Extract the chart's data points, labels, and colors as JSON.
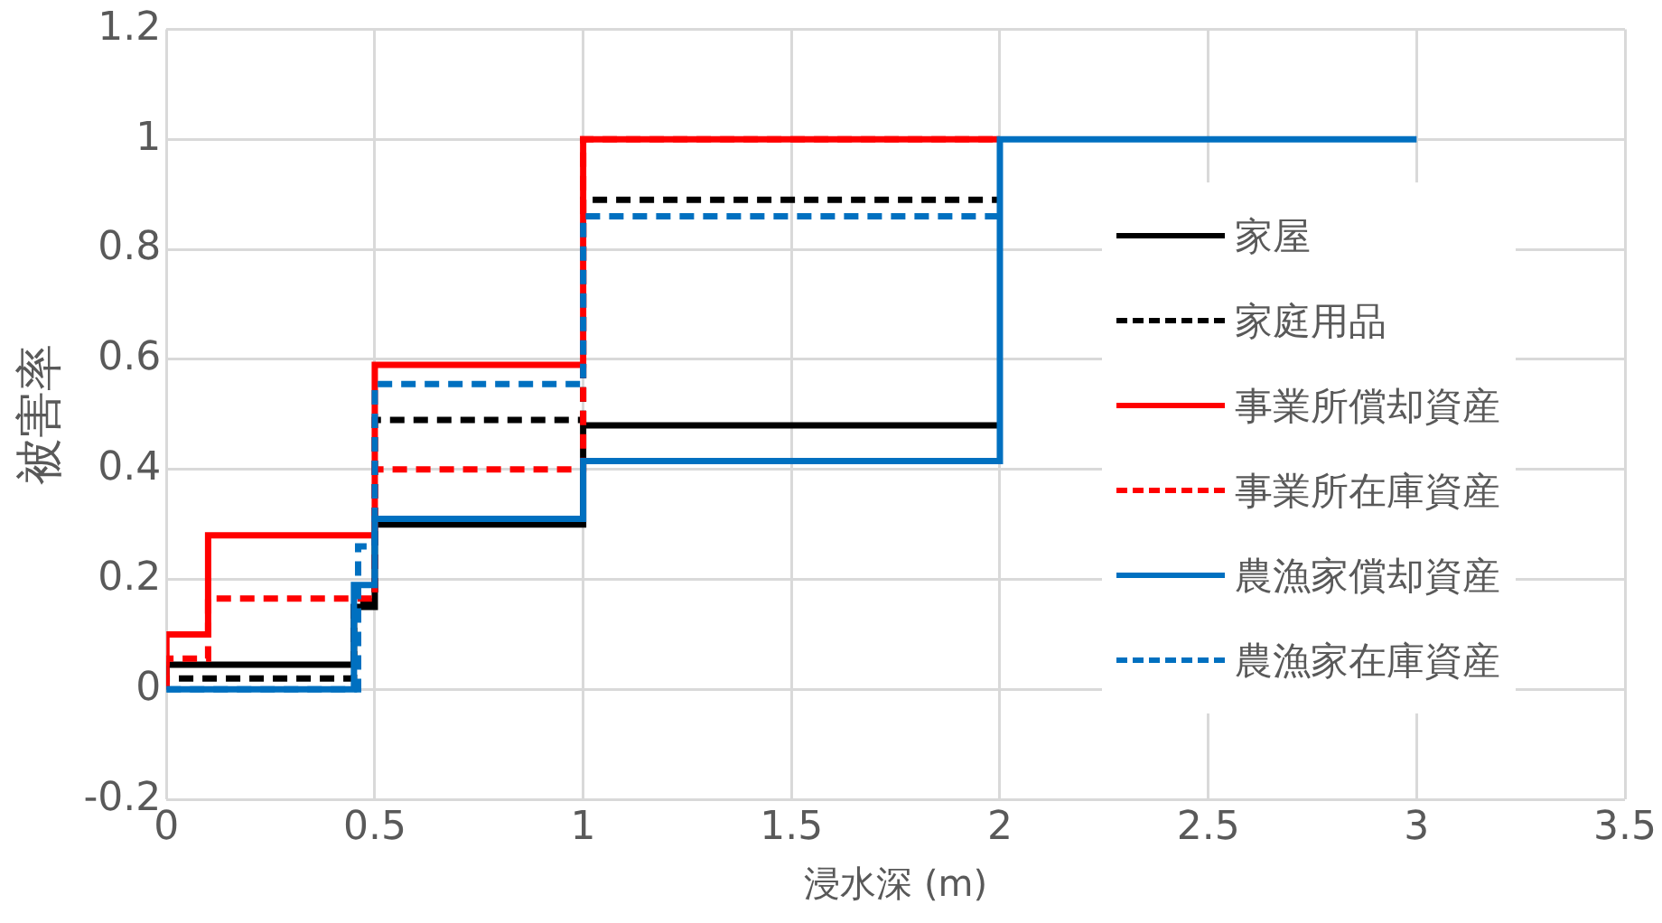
{
  "chart_data": {
    "type": "step",
    "xlabel": "浸水深 (m)",
    "ylabel": "被害率",
    "xlim": [
      0,
      3.5
    ],
    "xticks": [
      0,
      0.5,
      1,
      1.5,
      2,
      2.5,
      3,
      3.5
    ],
    "ylim": [
      -0.2,
      1.2
    ],
    "yticks": [
      -0.2,
      0,
      0.2,
      0.4,
      0.6,
      0.8,
      1,
      1.2
    ],
    "grid": true,
    "legend": "right",
    "marker": "none",
    "series": [
      {
        "name": "家屋",
        "color": "#000000",
        "line_style": "solid",
        "x": [
          0,
          0,
          0.45,
          0.5,
          1,
          2
        ],
        "values": [
          0,
          0.045,
          0.15,
          0.3,
          0.48,
          0.48
        ]
      },
      {
        "name": "家庭用品",
        "color": "#000000",
        "line_style": "dashed",
        "x": [
          0,
          0,
          0.45,
          0.5,
          1,
          2
        ],
        "values": [
          0,
          0.02,
          0.16,
          0.49,
          0.89,
          0.89
        ]
      },
      {
        "name": "事業所償却資産",
        "color": "#ff0000",
        "line_style": "solid",
        "x": [
          0,
          0,
          0.1,
          0.5,
          1,
          2
        ],
        "values": [
          0,
          0.1,
          0.28,
          0.59,
          1,
          1
        ]
      },
      {
        "name": "事業所在庫資産",
        "color": "#ff0000",
        "line_style": "dashed",
        "x": [
          0,
          0,
          0.1,
          0.5,
          1,
          2
        ],
        "values": [
          0,
          0.056,
          0.165,
          0.4,
          1,
          1
        ]
      },
      {
        "name": "農漁家償却資産",
        "color": "#0070c0",
        "line_style": "solid",
        "x": [
          0,
          0.45,
          0.5,
          1,
          2,
          3
        ],
        "values": [
          0,
          0.19,
          0.31,
          0.415,
          1,
          1
        ]
      },
      {
        "name": "農漁家在庫資産",
        "color": "#0070c0",
        "line_style": "dashed",
        "x": [
          0,
          0.46,
          0.5,
          1,
          2
        ],
        "values": [
          0,
          0.26,
          0.555,
          0.86,
          0.86
        ]
      }
    ]
  }
}
